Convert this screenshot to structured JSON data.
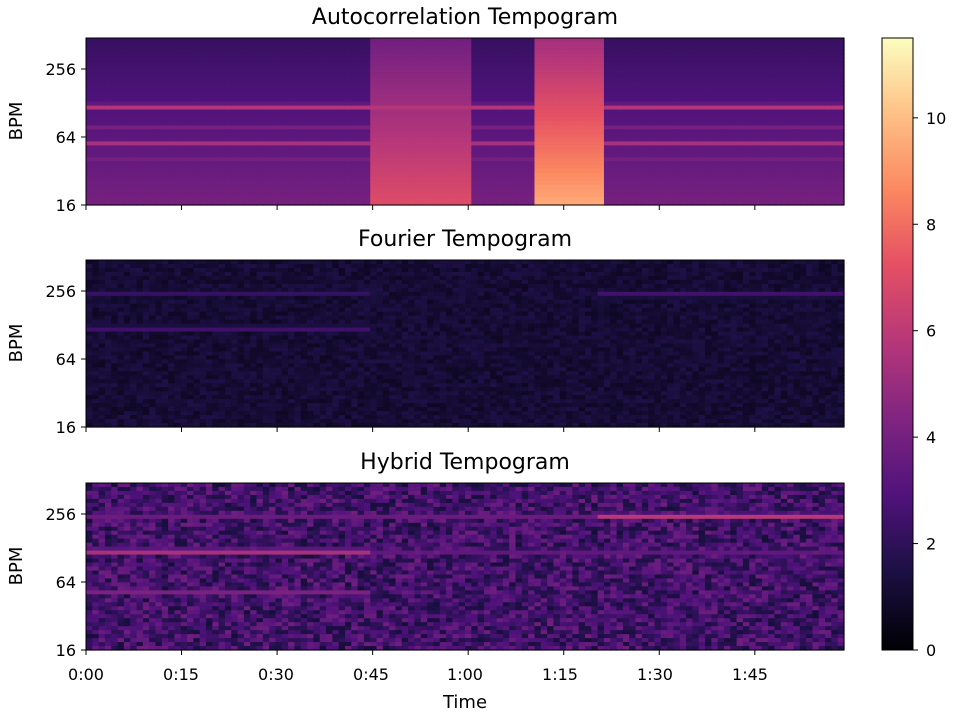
{
  "chart_data": [
    {
      "type": "heatmap",
      "title": "Autocorrelation Tempogram",
      "ylabel": "BPM",
      "xlabel": "",
      "y_scale": "log2",
      "ylim": [
        16,
        416
      ],
      "yticks": [
        "16",
        "64",
        "256"
      ],
      "xlim_seconds": [
        0,
        119
      ],
      "colormap": "magma",
      "bands": [
        {
          "bpm": 110,
          "intensity": 8.5
        },
        {
          "bpm": 52,
          "intensity": 7.5
        },
        {
          "bpm": 75,
          "intensity": 6.5
        },
        {
          "bpm": 40,
          "intensity": 5.5
        },
        {
          "bpm": 30,
          "intensity": 5
        }
      ],
      "segments": [
        {
          "start": 0,
          "end": 45,
          "level": 4
        },
        {
          "start": 45,
          "end": 60,
          "level": 7
        },
        {
          "start": 60,
          "end": 70,
          "level": 4
        },
        {
          "start": 70,
          "end": 81,
          "level": 9.5
        },
        {
          "start": 81,
          "end": 119,
          "level": 4
        }
      ]
    },
    {
      "type": "heatmap",
      "title": "Fourier Tempogram",
      "ylabel": "BPM",
      "xlabel": "",
      "y_scale": "log2",
      "ylim": [
        16,
        416
      ],
      "yticks": [
        "16",
        "64",
        "256"
      ],
      "xlim_seconds": [
        0,
        119
      ],
      "colormap": "magma",
      "bands": [
        {
          "bpm": 110,
          "start": 0,
          "end": 45,
          "intensity": 3.5
        },
        {
          "bpm": 220,
          "start": 0,
          "end": 45,
          "intensity": 3
        },
        {
          "bpm": 210,
          "start": 80,
          "end": 119,
          "intensity": 3.5
        }
      ]
    },
    {
      "type": "heatmap",
      "title": "Hybrid Tempogram",
      "ylabel": "BPM",
      "xlabel": "Time",
      "y_scale": "log2",
      "ylim": [
        16,
        416
      ],
      "yticks": [
        "16",
        "64",
        "256"
      ],
      "xlim_seconds": [
        0,
        119
      ],
      "xticks": [
        "0:00",
        "0:15",
        "0:30",
        "0:45",
        "1:00",
        "1:15",
        "1:30",
        "1:45"
      ],
      "colormap": "magma",
      "bands": [
        {
          "bpm": 110,
          "start": 0,
          "end": 45,
          "intensity": 8
        },
        {
          "bpm": 220,
          "start": 80,
          "end": 119,
          "intensity": 8
        },
        {
          "bpm": 220,
          "start": 0,
          "end": 80,
          "intensity": 5
        },
        {
          "bpm": 110,
          "start": 45,
          "end": 119,
          "intensity": 5
        },
        {
          "bpm": 50,
          "start": 0,
          "end": 45,
          "intensity": 5
        }
      ]
    }
  ],
  "colorbar": {
    "min": 0,
    "max": 11.5,
    "ticks": [
      "0",
      "2",
      "4",
      "6",
      "8",
      "10"
    ]
  }
}
